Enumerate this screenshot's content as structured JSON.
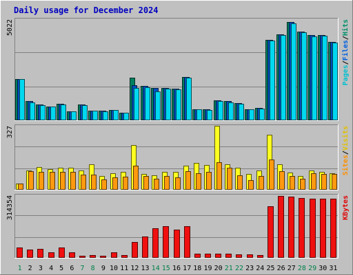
{
  "chart_data": {
    "type": "bar",
    "title": "Daily usage for December 2024",
    "categories": [
      "1",
      "2",
      "3",
      "4",
      "5",
      "6",
      "7",
      "8",
      "9",
      "10",
      "11",
      "12",
      "13",
      "14",
      "15",
      "16",
      "17",
      "18",
      "19",
      "20",
      "21",
      "22",
      "23",
      "24",
      "25",
      "26",
      "27",
      "28",
      "29",
      "30",
      "31"
    ],
    "weekend_days": [
      "1",
      "7",
      "8",
      "14",
      "15",
      "21",
      "22",
      "28",
      "29"
    ],
    "grid": true,
    "panels": [
      {
        "id": "hits",
        "ymax": 5022,
        "ymax_label": "5022",
        "side_labels": [
          {
            "text": "Pages",
            "color": "#00c0d0"
          },
          {
            "text": "/",
            "color": "#000000"
          },
          {
            "text": "Files",
            "color": "#0060e0"
          },
          {
            "text": "/",
            "color": "#000000"
          },
          {
            "text": "Hits",
            "color": "#00906a"
          }
        ],
        "series": [
          {
            "name": "Hits",
            "color": "#008060",
            "values": [
              2050,
              940,
              800,
              700,
              830,
              450,
              780,
              490,
              470,
              520,
              390,
              2130,
              1720,
              1590,
              1600,
              1580,
              2150,
              550,
              530,
              980,
              940,
              840,
              560,
              600,
              4000,
              4280,
              4880,
              4400,
              4250,
              4240,
              3900
            ]
          },
          {
            "name": "Files",
            "color": "#0050c0",
            "values": [
              2050,
              940,
              800,
              700,
              830,
              450,
              780,
              490,
              470,
              520,
              390,
              1750,
              1720,
              1590,
              1600,
              1580,
              2150,
              550,
              530,
              980,
              940,
              840,
              560,
              600,
              4000,
              4280,
              4880,
              4400,
              4250,
              4240,
              3900
            ]
          },
          {
            "name": "Pages",
            "color": "#00d8f0",
            "values": [
              2050,
              900,
              760,
              690,
              800,
              440,
              760,
              480,
              460,
              500,
              370,
              1600,
              1650,
              1450,
              1580,
              1550,
              2110,
              540,
              520,
              940,
              900,
              820,
              540,
              580,
              3960,
              4230,
              4830,
              4360,
              4180,
              4200,
              3860
            ]
          }
        ]
      },
      {
        "id": "visits",
        "ymax": 327,
        "ymax_label": "327",
        "side_labels": [
          {
            "text": "Sites",
            "color": "#ff9000"
          },
          {
            "text": "/",
            "color": "#000000"
          },
          {
            "text": "Visits",
            "color": "#e0c000"
          }
        ],
        "series": [
          {
            "name": "Visits",
            "color": "#ffff20",
            "values": [
              33,
              100,
              115,
              106,
              111,
              111,
              100,
              131,
              70,
              86,
              90,
              230,
              80,
              75,
              92,
              92,
              123,
              137,
              126,
              327,
              130,
              113,
              82,
              100,
              280,
              130,
              88,
              70,
              98,
              92,
              86
            ]
          },
          {
            "name": "Sites",
            "color": "#ff9a10",
            "values": [
              30,
              94,
              90,
              92,
              93,
              92,
              78,
              78,
              54,
              62,
              66,
              123,
              70,
              58,
              70,
              65,
              94,
              84,
              92,
              142,
              112,
              74,
              48,
              72,
              154,
              96,
              72,
              58,
              84,
              80,
              80
            ]
          }
        ]
      },
      {
        "id": "kbytes",
        "ymax": 314354,
        "ymax_label": "314354",
        "side_labels": [
          {
            "text": "KBytes",
            "color": "#e00000"
          }
        ],
        "series": [
          {
            "name": "KBytes",
            "color": "#f01010",
            "values": [
              52000,
              41000,
              45000,
              29000,
              51000,
              29000,
              10000,
              14000,
              12000,
              27000,
              13000,
              80000,
              107000,
              148000,
              158000,
              141000,
              158000,
              20000,
              20000,
              20000,
              20000,
              17000,
              17000,
              13000,
              258000,
              312000,
              308000,
              302000,
              297000,
              297000,
              297000
            ]
          }
        ]
      }
    ]
  }
}
